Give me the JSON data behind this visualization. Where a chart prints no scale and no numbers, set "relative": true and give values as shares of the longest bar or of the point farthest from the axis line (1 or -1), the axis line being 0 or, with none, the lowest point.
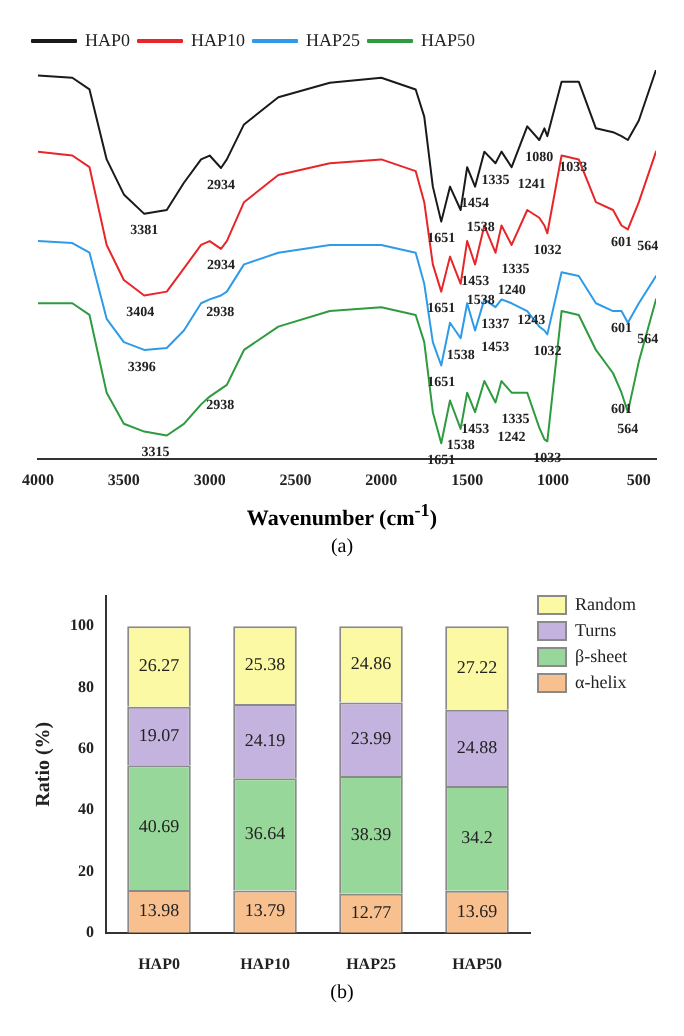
{
  "chart_data": [
    {
      "type": "line",
      "relative": true,
      "xlabel": "Wavenumber (cm$^{-1}$)",
      "legend": "top left",
      "tick_labels": "x",
      "marker": "none",
      "line_style": "solid",
      "x": [
        4000,
        3800,
        3700,
        3600,
        3500,
        3381,
        3250,
        3150,
        3050,
        3000,
        2934,
        2900,
        2800,
        2600,
        2300,
        2000,
        1800,
        1750,
        1700,
        1651,
        1600,
        1538,
        1500,
        1454,
        1400,
        1335,
        1300,
        1241,
        1150,
        1080,
        1050,
        1033,
        950,
        850,
        750,
        650,
        601,
        564,
        500,
        400
      ],
      "xlim": [
        4000,
        400
      ],
      "xticks": [
        4000,
        3500,
        3000,
        2500,
        2000,
        1500,
        1000,
        500
      ],
      "series": [
        {
          "name": "HAP0",
          "color": "#1a1a1a",
          "values": [
            0.986,
            0.98,
            0.95,
            0.77,
            0.68,
            0.63,
            0.64,
            0.71,
            0.77,
            0.78,
            0.748,
            0.77,
            0.86,
            0.93,
            0.967,
            0.98,
            0.95,
            0.88,
            0.7,
            0.61,
            0.7,
            0.64,
            0.75,
            0.7,
            0.79,
            0.76,
            0.79,
            0.75,
            0.855,
            0.82,
            0.85,
            0.83,
            0.97,
            0.97,
            0.85,
            0.84,
            0.83,
            0.82,
            0.87,
            1.0
          ]
        },
        {
          "name": "HAP10",
          "color": "#e8262a",
          "values": [
            0.79,
            0.78,
            0.75,
            0.55,
            0.46,
            0.42,
            0.43,
            0.49,
            0.55,
            0.56,
            0.54,
            0.56,
            0.66,
            0.73,
            0.76,
            0.77,
            0.74,
            0.66,
            0.5,
            0.43,
            0.52,
            0.45,
            0.56,
            0.5,
            0.6,
            0.53,
            0.6,
            0.55,
            0.64,
            0.62,
            0.6,
            0.58,
            0.78,
            0.77,
            0.66,
            0.64,
            0.6,
            0.59,
            0.66,
            0.79
          ]
        },
        {
          "name": "HAP25",
          "color": "#2e9be8",
          "values": [
            0.56,
            0.555,
            0.53,
            0.36,
            0.3,
            0.28,
            0.285,
            0.33,
            0.4,
            0.41,
            0.42,
            0.43,
            0.5,
            0.53,
            0.55,
            0.55,
            0.53,
            0.45,
            0.3,
            0.24,
            0.35,
            0.31,
            0.4,
            0.33,
            0.41,
            0.39,
            0.41,
            0.4,
            0.38,
            0.34,
            0.33,
            0.32,
            0.48,
            0.47,
            0.4,
            0.38,
            0.38,
            0.35,
            0.4,
            0.47
          ]
        },
        {
          "name": "HAP50",
          "color": "#2e9b3e",
          "values": [
            0.4,
            0.4,
            0.37,
            0.17,
            0.09,
            0.07,
            0.06,
            0.09,
            0.14,
            0.16,
            0.18,
            0.19,
            0.28,
            0.34,
            0.38,
            0.39,
            0.37,
            0.3,
            0.12,
            0.04,
            0.15,
            0.077,
            0.17,
            0.12,
            0.2,
            0.145,
            0.2,
            0.17,
            0.17,
            0.08,
            0.05,
            0.045,
            0.38,
            0.37,
            0.28,
            0.22,
            0.17,
            0.12,
            0.25,
            0.41
          ]
        }
      ],
      "annotations": [
        {
          "text": "3381",
          "x": 3381,
          "y": 0.63
        },
        {
          "text": "2934",
          "x": 2934,
          "y": 0.748
        },
        {
          "text": "1651",
          "x": 1651,
          "y": 0.61
        },
        {
          "text": "1538",
          "x": 1538,
          "y": 0.64
        },
        {
          "text": "1454",
          "x": 1454,
          "y": 0.7
        },
        {
          "text": "1335",
          "x": 1335,
          "y": 0.76
        },
        {
          "text": "1241",
          "x": 1241,
          "y": 0.75
        },
        {
          "text": "1080",
          "x": 1080,
          "y": 0.82
        },
        {
          "text": "1033",
          "x": 1033,
          "y": 0.83
        },
        {
          "text": "3404",
          "x": 3404,
          "y": 0.42
        },
        {
          "text": "2934",
          "x": 2934,
          "y": 0.54
        },
        {
          "text": "1651",
          "x": 1651,
          "y": 0.43
        },
        {
          "text": "1538",
          "x": 1538,
          "y": 0.45
        },
        {
          "text": "1453",
          "x": 1453,
          "y": 0.5
        },
        {
          "text": "1335",
          "x": 1335,
          "y": 0.53
        },
        {
          "text": "1240",
          "x": 1240,
          "y": 0.55
        },
        {
          "text": "1032",
          "x": 1032,
          "y": 0.58
        },
        {
          "text": "601",
          "x": 601,
          "y": 0.6
        },
        {
          "text": "564",
          "x": 564,
          "y": 0.59
        },
        {
          "text": "3396",
          "x": 3396,
          "y": 0.28
        },
        {
          "text": "2938",
          "x": 2938,
          "y": 0.42
        },
        {
          "text": "1651",
          "x": 1651,
          "y": 0.24
        },
        {
          "text": "1538",
          "x": 1538,
          "y": 0.31
        },
        {
          "text": "1453",
          "x": 1453,
          "y": 0.33
        },
        {
          "text": "1337",
          "x": 1337,
          "y": 0.39
        },
        {
          "text": "1243",
          "x": 1243,
          "y": 0.4
        },
        {
          "text": "1032",
          "x": 1032,
          "y": 0.32
        },
        {
          "text": "601",
          "x": 601,
          "y": 0.38
        },
        {
          "text": "564",
          "x": 564,
          "y": 0.35
        },
        {
          "text": "3315",
          "x": 3315,
          "y": 0.06
        },
        {
          "text": "2938",
          "x": 2938,
          "y": 0.18
        },
        {
          "text": "1651",
          "x": 1651,
          "y": 0.04
        },
        {
          "text": "1538",
          "x": 1538,
          "y": 0.077
        },
        {
          "text": "1453",
          "x": 1453,
          "y": 0.12
        },
        {
          "text": "1335",
          "x": 1335,
          "y": 0.145
        },
        {
          "text": "1242",
          "x": 1242,
          "y": 0.17
        },
        {
          "text": "1033",
          "x": 1033,
          "y": 0.045
        },
        {
          "text": "601",
          "x": 601,
          "y": 0.17
        },
        {
          "text": "564",
          "x": 564,
          "y": 0.12
        },
        "(a)"
      ]
    },
    {
      "type": "bar",
      "stacked": true,
      "ylabel": "Ratio (%)",
      "legend": "top right",
      "data_labels": true,
      "categories": [
        "HAP0",
        "HAP10",
        "HAP25",
        "HAP50"
      ],
      "ylim": [
        0,
        110
      ],
      "yticks": [
        0,
        20,
        40,
        60,
        80,
        100
      ],
      "series": [
        {
          "name": "α-helix",
          "color": "#f9c08f",
          "values": [
            13.98,
            13.79,
            12.77,
            13.69
          ]
        },
        {
          "name": "β-sheet",
          "color": "#98d79a",
          "values": [
            40.69,
            36.64,
            38.39,
            34.2
          ]
        },
        {
          "name": "Turns",
          "color": "#c5b3df",
          "values": [
            19.07,
            24.19,
            23.99,
            24.88
          ]
        },
        {
          "name": "Random",
          "color": "#fbf9a3",
          "values": [
            26.27,
            25.38,
            24.86,
            27.22
          ]
        }
      ],
      "annotations": [
        "(b)"
      ]
    }
  ]
}
